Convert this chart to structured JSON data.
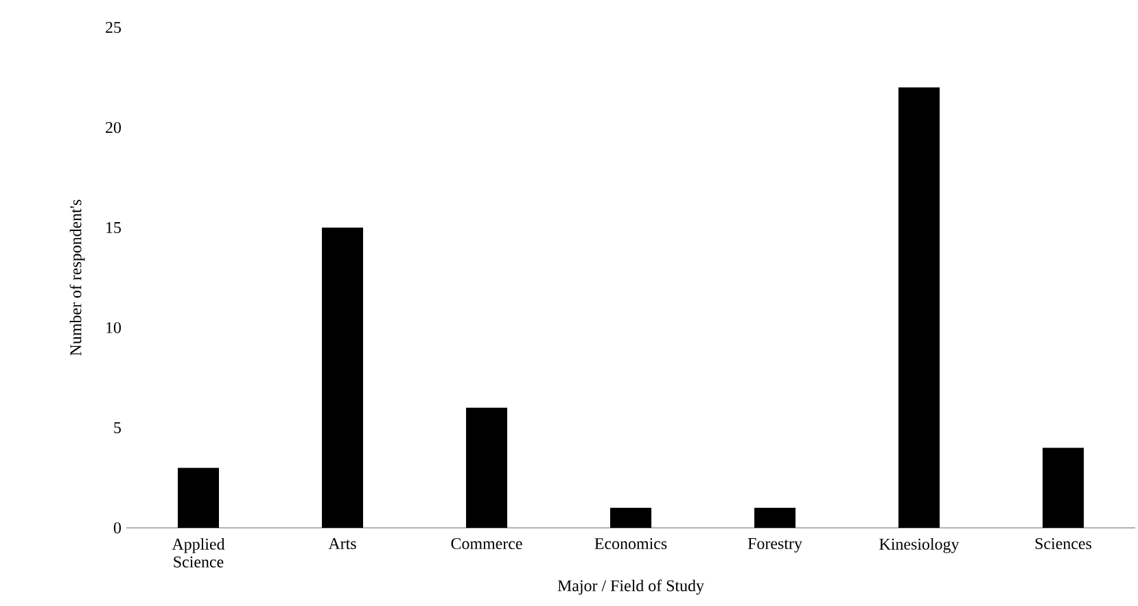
{
  "chart_data": {
    "type": "bar",
    "xlabel": "Major / Field of Study",
    "ylabel": "Number of respondent's",
    "categories": [
      "Applied Science",
      "Arts",
      "Commerce",
      "Economics",
      "Forestry",
      "Kinesiology",
      "Sciences"
    ],
    "values": [
      3,
      15,
      6,
      1,
      1,
      22,
      4
    ],
    "color": "#000000",
    "ylim": [
      0,
      25
    ],
    "yticks": [
      0,
      5,
      10,
      15,
      20,
      25
    ]
  }
}
